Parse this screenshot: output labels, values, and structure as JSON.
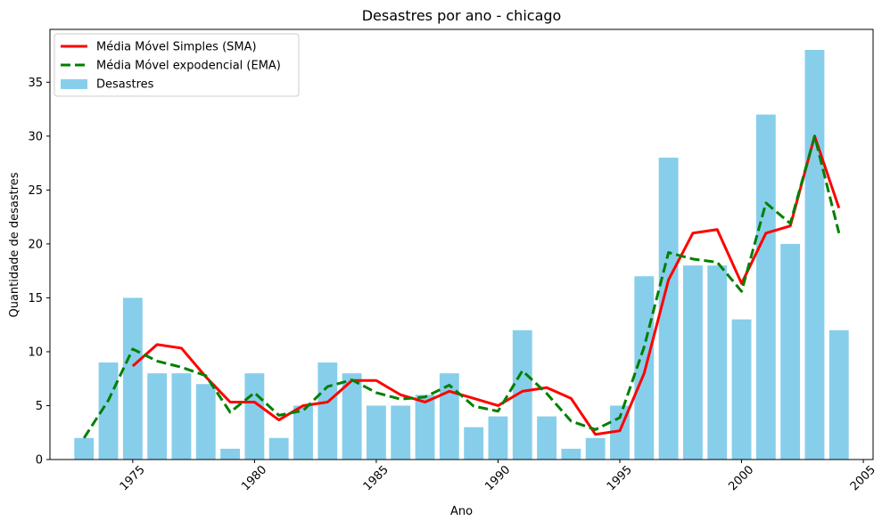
{
  "chart_data": {
    "type": "bar",
    "title": "Desastres por ano - chicago",
    "xlabel": "Ano",
    "ylabel": "Quantidade de desastres",
    "xlim": [
      1971.6,
      2005.4
    ],
    "ylim": [
      0,
      39.9
    ],
    "xticks": [
      1975,
      1980,
      1985,
      1990,
      1995,
      2000,
      2005
    ],
    "yticks": [
      0,
      5,
      10,
      15,
      20,
      25,
      30,
      35
    ],
    "grid": false,
    "legend_position": "top-left",
    "years": [
      1973,
      1974,
      1975,
      1976,
      1977,
      1978,
      1979,
      1980,
      1981,
      1982,
      1983,
      1984,
      1985,
      1986,
      1987,
      1988,
      1989,
      1990,
      1991,
      1992,
      1993,
      1994,
      1995,
      1996,
      1997,
      1998,
      1999,
      2000,
      2001,
      2002,
      2003,
      2004
    ],
    "series": [
      {
        "name": "Desastres",
        "kind": "bar",
        "color": "#87CEEB",
        "values": [
          2,
          9,
          15,
          8,
          8,
          7,
          1,
          8,
          2,
          5,
          9,
          8,
          5,
          5,
          6,
          8,
          3,
          4,
          12,
          4,
          1,
          2,
          5,
          17,
          28,
          18,
          18,
          13,
          32,
          20,
          38,
          12
        ]
      },
      {
        "name": "Média Móvel Simples (SMA)",
        "kind": "line",
        "color": "#ff0000",
        "dash": "solid",
        "values": [
          null,
          null,
          8.67,
          10.67,
          10.33,
          7.67,
          5.33,
          5.33,
          3.67,
          5,
          5.33,
          7.33,
          7.33,
          6,
          5.33,
          6.33,
          5.67,
          5,
          6.33,
          6.67,
          5.67,
          2.33,
          2.67,
          8,
          16.67,
          21,
          21.33,
          16.33,
          21,
          21.67,
          30,
          23.33
        ]
      },
      {
        "name": "Média Móvel expodencial (EMA)",
        "kind": "line",
        "color": "#008000",
        "dash": "dashed",
        "values": [
          2,
          5.5,
          10.25,
          9.13,
          8.56,
          7.78,
          4.39,
          6.2,
          4.1,
          4.55,
          6.77,
          7.39,
          6.2,
          5.6,
          5.8,
          6.9,
          4.95,
          4.48,
          8.24,
          6.12,
          3.56,
          2.78,
          3.89,
          10.45,
          19.2,
          18.6,
          18.3,
          15.6,
          23.8,
          21.9,
          30,
          21
        ]
      }
    ]
  }
}
